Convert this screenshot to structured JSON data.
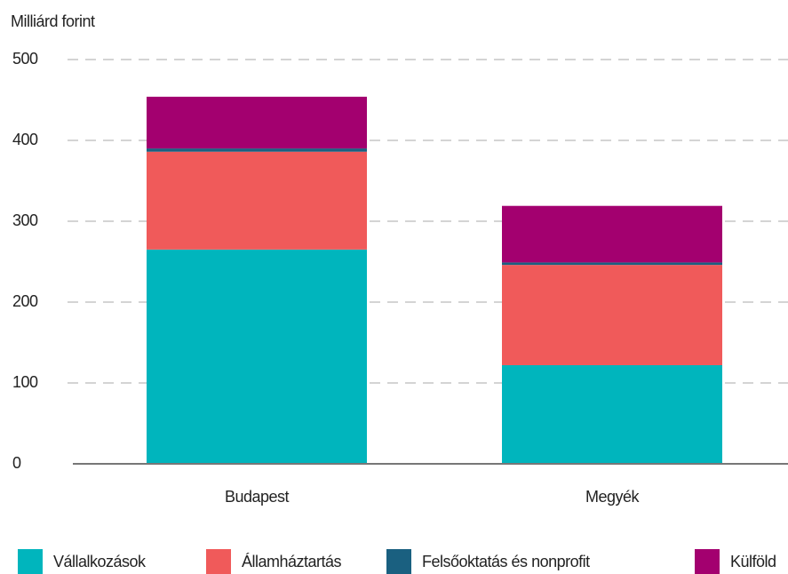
{
  "chart_data": {
    "type": "stacked_bar",
    "y_label": "Milliárd forint",
    "categories": [
      "Budapest",
      "Megyék"
    ],
    "series": [
      {
        "name": "Vállalkozások",
        "color": "#00b5bd",
        "values": [
          265,
          122
        ]
      },
      {
        "name": "Államháztartás",
        "color": "#f05a5a",
        "values": [
          121,
          124
        ]
      },
      {
        "name": "Felsőoktatás és nonprofit",
        "color": "#1a6080",
        "values": [
          4,
          3
        ]
      },
      {
        "name": "Külföld",
        "color": "#a3006f",
        "values": [
          64,
          70
        ]
      }
    ],
    "ylim": [
      0,
      500
    ],
    "yticks": [
      0,
      100,
      200,
      300,
      400,
      500
    ],
    "grid": true,
    "legend": "bottom"
  }
}
